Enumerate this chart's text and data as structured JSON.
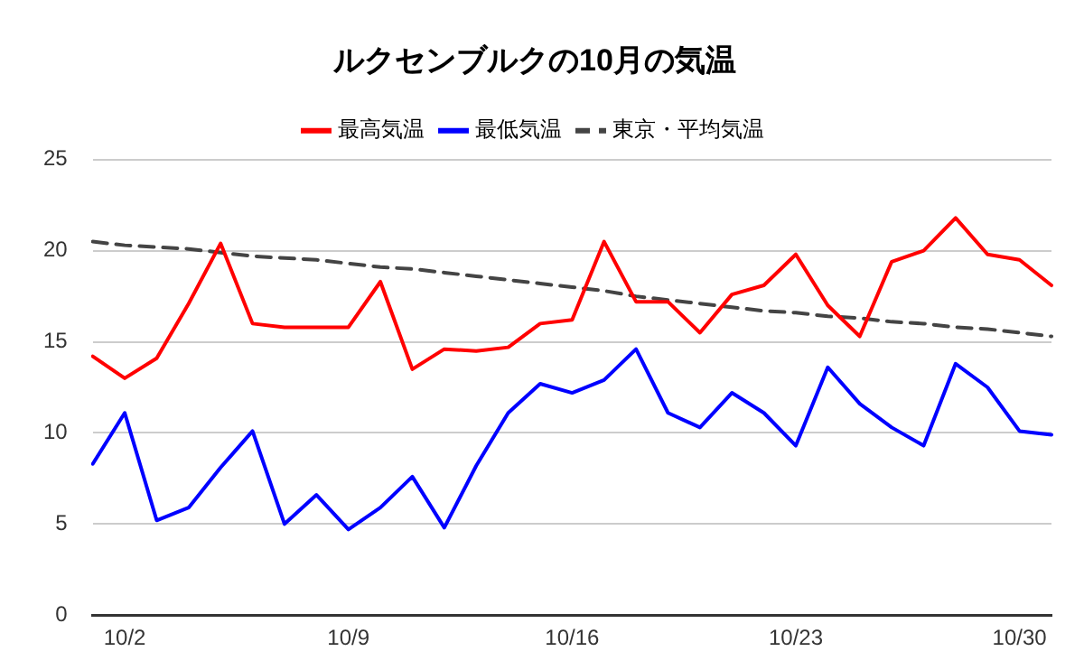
{
  "chart_data": {
    "type": "line",
    "title": "ルクセンブルクの10月の気温",
    "categories": [
      null,
      "10/2",
      null,
      null,
      null,
      null,
      null,
      null,
      "10/9",
      null,
      null,
      null,
      null,
      null,
      null,
      "10/16",
      null,
      null,
      null,
      null,
      null,
      null,
      "10/23",
      null,
      null,
      null,
      null,
      null,
      null,
      "10/30",
      null
    ],
    "series": [
      {
        "name": "最高気温",
        "color": "#ff0000",
        "values": [
          14.2,
          13.0,
          14.1,
          17.1,
          20.4,
          16.0,
          15.8,
          15.8,
          15.8,
          18.3,
          13.5,
          14.6,
          14.5,
          14.7,
          16.0,
          16.2,
          20.5,
          17.2,
          17.2,
          15.5,
          17.6,
          18.1,
          19.8,
          17.0,
          15.3,
          19.4,
          20.0,
          21.8,
          19.8,
          19.5,
          18.1
        ]
      },
      {
        "name": "最低気温",
        "color": "#0000ff",
        "values": [
          8.3,
          11.1,
          5.2,
          5.9,
          8.1,
          10.1,
          5.0,
          6.6,
          4.7,
          5.9,
          7.6,
          4.8,
          8.2,
          11.1,
          12.7,
          12.2,
          12.9,
          14.6,
          11.1,
          10.3,
          12.2,
          11.1,
          9.3,
          13.6,
          11.6,
          10.3,
          9.3,
          13.8,
          12.5,
          10.1,
          9.9
        ]
      },
      {
        "name": "東京・平均気温",
        "color": "#444444",
        "line_style": "dashed",
        "values": [
          20.5,
          20.3,
          20.2,
          20.1,
          19.9,
          19.7,
          19.6,
          19.5,
          19.3,
          19.1,
          19.0,
          18.8,
          18.6,
          18.4,
          18.2,
          18.0,
          17.8,
          17.5,
          17.3,
          17.1,
          16.9,
          16.7,
          16.6,
          16.4,
          16.3,
          16.1,
          16.0,
          15.8,
          15.7,
          15.5,
          15.3
        ]
      }
    ],
    "ylim": [
      0,
      25
    ],
    "yticks": [
      0,
      5,
      10,
      15,
      20,
      25
    ],
    "grid": "y",
    "legend": "top",
    "marker": "none"
  }
}
